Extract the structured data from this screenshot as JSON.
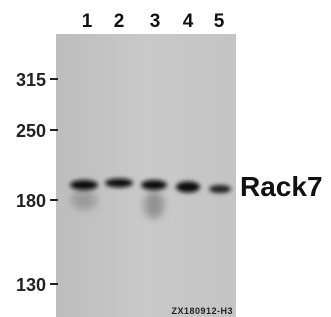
{
  "lanes": [
    "1",
    "2",
    "3",
    "4",
    "5"
  ],
  "markers": [
    "315",
    "250",
    "180",
    "130"
  ],
  "band_label": "Rack7",
  "sample_id": "ZX180912-H3"
}
